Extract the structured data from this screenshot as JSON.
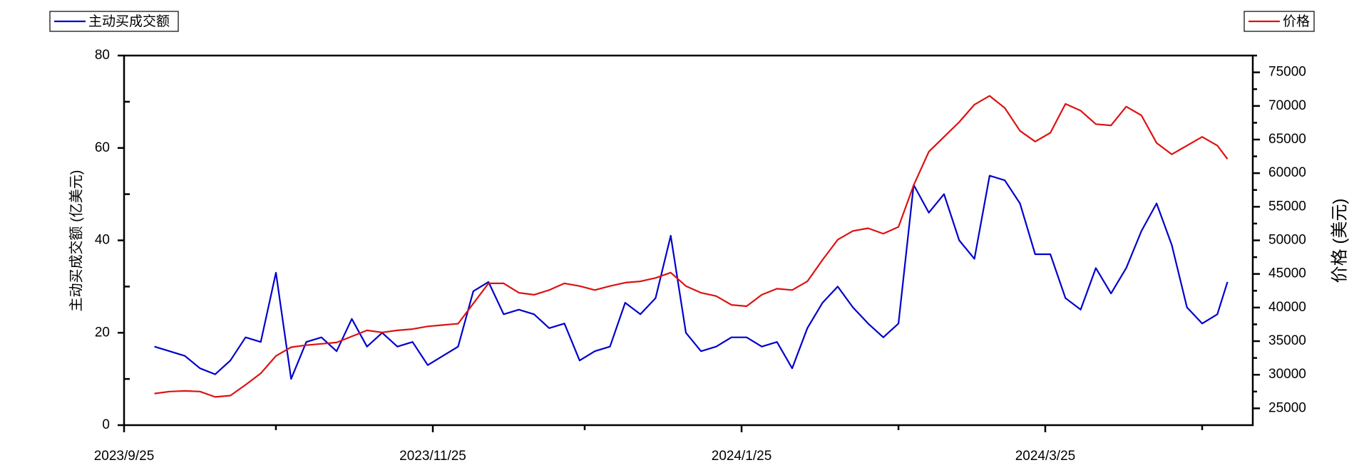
{
  "chart_data": {
    "type": "line",
    "x": [
      "2023/10/1",
      "2023/10/4",
      "2023/10/7",
      "2023/10/10",
      "2023/10/13",
      "2023/10/16",
      "2023/10/19",
      "2023/10/22",
      "2023/10/25",
      "2023/10/28",
      "2023/10/31",
      "2023/11/3",
      "2023/11/6",
      "2023/11/9",
      "2023/11/12",
      "2023/11/15",
      "2023/11/18",
      "2023/11/21",
      "2023/11/24",
      "2023/11/27",
      "2023/11/30",
      "2023/12/3",
      "2023/12/6",
      "2023/12/9",
      "2023/12/12",
      "2023/12/15",
      "2023/12/18",
      "2023/12/21",
      "2023/12/24",
      "2023/12/27",
      "2023/12/30",
      "2024/1/2",
      "2024/1/5",
      "2024/1/8",
      "2024/1/11",
      "2024/1/14",
      "2024/1/17",
      "2024/1/20",
      "2024/1/23",
      "2024/1/26",
      "2024/1/29",
      "2024/2/1",
      "2024/2/4",
      "2024/2/7",
      "2024/2/10",
      "2024/2/13",
      "2024/2/16",
      "2024/2/19",
      "2024/2/22",
      "2024/2/25",
      "2024/2/28",
      "2024/3/2",
      "2024/3/5",
      "2024/3/8",
      "2024/3/11",
      "2024/3/14",
      "2024/3/17",
      "2024/3/20",
      "2024/3/23",
      "2024/3/26",
      "2024/3/29",
      "2024/4/1",
      "2024/4/4",
      "2024/4/7",
      "2024/4/10",
      "2024/4/13",
      "2024/4/16",
      "2024/4/19",
      "2024/4/22",
      "2024/4/25",
      "2024/4/28",
      "2024/4/30"
    ],
    "series": [
      {
        "name": "主动买成交额",
        "color": "#0000cc",
        "axis": "y",
        "values": [
          17,
          16,
          15,
          12.3,
          11,
          14,
          19,
          18,
          33,
          10,
          18,
          19,
          16,
          23,
          17,
          20,
          17,
          18,
          13,
          15,
          17,
          29,
          31,
          24,
          25,
          24,
          21,
          22,
          14,
          16,
          17,
          26.5,
          24,
          27.5,
          41,
          20,
          16,
          17,
          19,
          19,
          17,
          18,
          12.3,
          21,
          26.5,
          30,
          25.5,
          22,
          19,
          22,
          52,
          46,
          50,
          40,
          36,
          54,
          53,
          48,
          37,
          37,
          27.5,
          25,
          34,
          28.5,
          34,
          42,
          48,
          39,
          25.5,
          22,
          24,
          31
        ]
      },
      {
        "name": "价格",
        "color": "#dd1111",
        "axis": "y2",
        "values": [
          27200,
          27500,
          27600,
          27500,
          26700,
          26900,
          28500,
          30200,
          32800,
          34100,
          34400,
          34600,
          34800,
          35700,
          36600,
          36300,
          36600,
          36800,
          37200,
          37400,
          37600,
          40600,
          43600,
          43600,
          42200,
          41900,
          42600,
          43600,
          43200,
          42600,
          43200,
          43700,
          43900,
          44400,
          45200,
          43200,
          42200,
          41700,
          40400,
          40200,
          41900,
          42800,
          42600,
          43900,
          47100,
          50100,
          51400,
          51800,
          51000,
          52000,
          58200,
          63200,
          65400,
          67600,
          70200,
          71500,
          69700,
          66300,
          64700,
          66000,
          70300,
          69300,
          67300,
          67100,
          69900,
          68600,
          64500,
          62800,
          64100,
          65400,
          64100,
          62100
        ]
      }
    ],
    "ylabel": "主动买成交额 (亿美元)",
    "y2label": "价格 (美元)",
    "xlim": [
      "2023/9/25",
      "2024/5/5"
    ],
    "xticks": [
      "2023/9/25",
      "2023/11/25",
      "2024/1/25",
      "2024/3/25"
    ],
    "xminorticks": [
      "2023/10/25",
      "2023/12/25",
      "2024/2/25",
      "2024/4/25"
    ],
    "ylim": [
      0,
      80
    ],
    "yticks": [
      0,
      20,
      40,
      60,
      80
    ],
    "yminorticks": [
      10,
      30,
      50,
      70
    ],
    "y2lim": [
      22500,
      77500
    ],
    "y2ticks": [
      25000,
      30000,
      35000,
      40000,
      45000,
      50000,
      55000,
      60000,
      65000,
      70000,
      75000
    ],
    "grid": false
  }
}
